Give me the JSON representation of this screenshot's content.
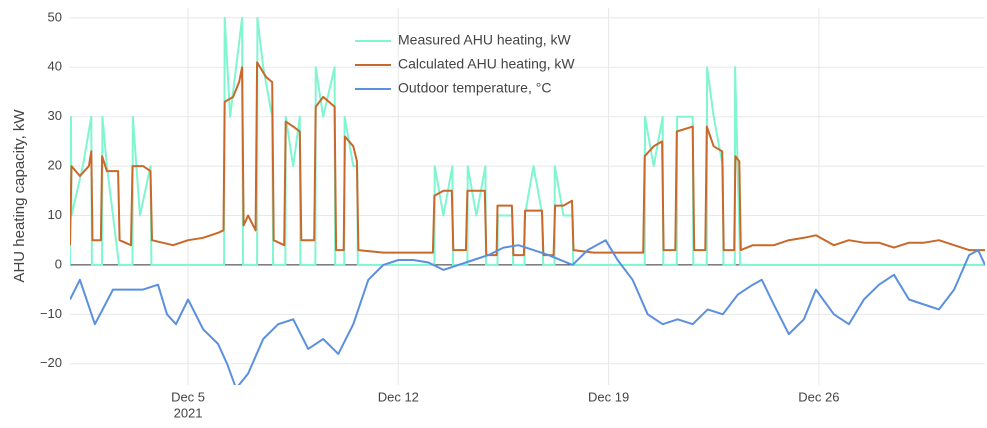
{
  "chart_data": {
    "type": "line",
    "y_label": "AHU heating capacity, kW",
    "x_year_label": "2021",
    "xlim": [
      1.07,
      31.53
    ],
    "xticks": [
      {
        "value": 5,
        "label": "Dec 5"
      },
      {
        "value": 12,
        "label": "Dec 12"
      },
      {
        "value": 19,
        "label": "Dec 19"
      },
      {
        "value": 26,
        "label": "Dec 26"
      }
    ],
    "ylim": [
      -24.3,
      52
    ],
    "yticks": [
      {
        "value": -20,
        "label": "−20"
      },
      {
        "value": -10,
        "label": "−10"
      },
      0,
      10,
      20,
      30,
      40,
      50
    ],
    "grid": true,
    "legend": "top-center",
    "series": [
      {
        "name": "Measured AHU heating, kW",
        "color": "#7ff5d0",
        "x": [
          1.07,
          1.1,
          1.12,
          1.5,
          1.78,
          1.8,
          2.14,
          2.15,
          2.3,
          2.5,
          2.7,
          3.15,
          3.16,
          3.4,
          3.75,
          3.78,
          6.2,
          6.22,
          6.4,
          6.6,
          6.8,
          6.83,
          7.3,
          7.31,
          7.5,
          7.8,
          7.83,
          8.24,
          8.25,
          8.5,
          8.72,
          8.74,
          9.24,
          9.25,
          9.5,
          9.88,
          9.9,
          10.2,
          10.21,
          10.5,
          10.63,
          10.65,
          13.2,
          13.21,
          13.5,
          13.8,
          13.82,
          14.3,
          14.31,
          14.6,
          14.9,
          14.92,
          15.3,
          15.31,
          15.8,
          15.82,
          16.2,
          16.21,
          16.5,
          16.8,
          16.82,
          17.2,
          17.21,
          17.5,
          17.8,
          17.82,
          20.2,
          20.21,
          20.5,
          20.8,
          20.82,
          21.27,
          21.28,
          21.8,
          21.82,
          22.27,
          22.28,
          22.5,
          22.8,
          22.82,
          23.2,
          23.21,
          23.38,
          31.53
        ],
        "values": [
          0,
          30,
          10,
          20,
          30,
          0,
          0,
          30,
          20,
          10,
          0,
          0,
          30,
          10,
          20,
          0,
          0,
          50,
          30,
          40,
          50,
          0,
          0,
          50,
          40,
          30,
          0,
          0,
          30,
          20,
          30,
          0,
          0,
          40,
          30,
          40,
          0,
          0,
          30,
          20,
          20,
          0,
          0,
          20,
          10,
          20,
          0,
          0,
          20,
          10,
          20,
          0,
          0,
          10,
          10,
          0,
          0,
          10,
          20,
          10,
          0,
          0,
          20,
          10,
          10,
          0,
          0,
          30,
          20,
          30,
          0,
          0,
          30,
          30,
          0,
          0,
          40,
          30,
          20,
          0,
          0,
          40,
          0,
          0
        ]
      },
      {
        "name": "Calculated AHU heating, kW",
        "color": "#c8682a",
        "x": [
          1.07,
          1.12,
          1.4,
          1.7,
          1.78,
          1.82,
          2.1,
          2.14,
          2.3,
          2.67,
          2.72,
          3.1,
          3.15,
          3.5,
          3.75,
          3.8,
          4.5,
          5.0,
          5.5,
          6.0,
          6.18,
          6.22,
          6.5,
          6.7,
          6.8,
          6.85,
          7.0,
          7.25,
          7.3,
          7.6,
          7.8,
          7.85,
          8.2,
          8.25,
          8.5,
          8.72,
          8.77,
          9.2,
          9.25,
          9.5,
          9.88,
          9.93,
          10.18,
          10.22,
          10.5,
          10.62,
          10.67,
          11.5,
          12.5,
          13.15,
          13.2,
          13.5,
          13.78,
          13.83,
          14.25,
          14.3,
          14.88,
          14.93,
          15.27,
          15.3,
          15.78,
          15.83,
          16.18,
          16.22,
          16.78,
          16.83,
          17.17,
          17.22,
          17.5,
          17.78,
          17.83,
          18.5,
          19.5,
          20.15,
          20.2,
          20.5,
          20.78,
          20.83,
          21.22,
          21.27,
          21.8,
          21.85,
          22.22,
          22.27,
          22.5,
          22.78,
          22.83,
          23.18,
          23.22,
          23.35,
          23.4,
          23.8,
          24.5,
          25.0,
          25.5,
          25.9,
          26.5,
          27.0,
          27.5,
          28.0,
          28.5,
          29.0,
          29.5,
          30.0,
          30.5,
          31.0,
          31.53
        ],
        "values": [
          4,
          20,
          18,
          20,
          23,
          5,
          5,
          22,
          19,
          19,
          5,
          4,
          20,
          20,
          19,
          5,
          4,
          5,
          5.5,
          6.5,
          7,
          33,
          34,
          37,
          40,
          8,
          10,
          7,
          41,
          38,
          37,
          5,
          4,
          29,
          28,
          27,
          5,
          5,
          32,
          34,
          32,
          3,
          3,
          26,
          24,
          21,
          3,
          2.5,
          2.5,
          2.5,
          14,
          15,
          15,
          3,
          3,
          15,
          15,
          2,
          2,
          12,
          12,
          2,
          2,
          11,
          11,
          2,
          2,
          12,
          12,
          13,
          3,
          2.5,
          2.5,
          2.5,
          22,
          24,
          25,
          3,
          3,
          27,
          28,
          3,
          3,
          28,
          24,
          23,
          3,
          3,
          22,
          21,
          3,
          4,
          4,
          5,
          5.5,
          6,
          4,
          5,
          4.5,
          4.5,
          3.5,
          4.5,
          4.5,
          5,
          4,
          3,
          3
        ]
      },
      {
        "name": "Outdoor temperature, °C",
        "color": "#5b8fe0",
        "x": [
          1.07,
          1.4,
          1.9,
          2.5,
          3.5,
          4.0,
          4.3,
          4.6,
          5.0,
          5.5,
          6.0,
          6.3,
          6.6,
          7.0,
          7.5,
          8.0,
          8.5,
          9.0,
          9.5,
          10.0,
          10.5,
          11.0,
          11.5,
          12.0,
          12.5,
          13.0,
          13.5,
          14.0,
          14.5,
          15.0,
          15.5,
          16.0,
          16.5,
          17.0,
          17.8,
          18.3,
          18.9,
          19.3,
          19.8,
          20.3,
          20.8,
          21.3,
          21.8,
          22.3,
          22.8,
          23.3,
          23.8,
          24.1,
          24.5,
          25.0,
          25.5,
          25.9,
          26.5,
          27.0,
          27.5,
          28.0,
          28.5,
          29.0,
          29.5,
          30.0,
          30.5,
          31.0,
          31.3,
          31.53
        ],
        "values": [
          -7,
          -3,
          -12,
          -5,
          -5,
          -4,
          -10,
          -12,
          -7,
          -13,
          -16,
          -20,
          -25,
          -22,
          -15,
          -12,
          -11,
          -17,
          -15,
          -18,
          -12,
          -3,
          0,
          1,
          1,
          0.5,
          -1,
          0,
          1,
          2,
          3.5,
          4,
          3,
          2,
          0,
          3,
          5,
          1,
          -3,
          -10,
          -12,
          -11,
          -12,
          -9,
          -10,
          -6,
          -4,
          -3,
          -8,
          -14,
          -11,
          -5,
          -10,
          -12,
          -7,
          -4,
          -2,
          -7,
          -8,
          -9,
          -5,
          2,
          3,
          0
        ]
      }
    ]
  }
}
